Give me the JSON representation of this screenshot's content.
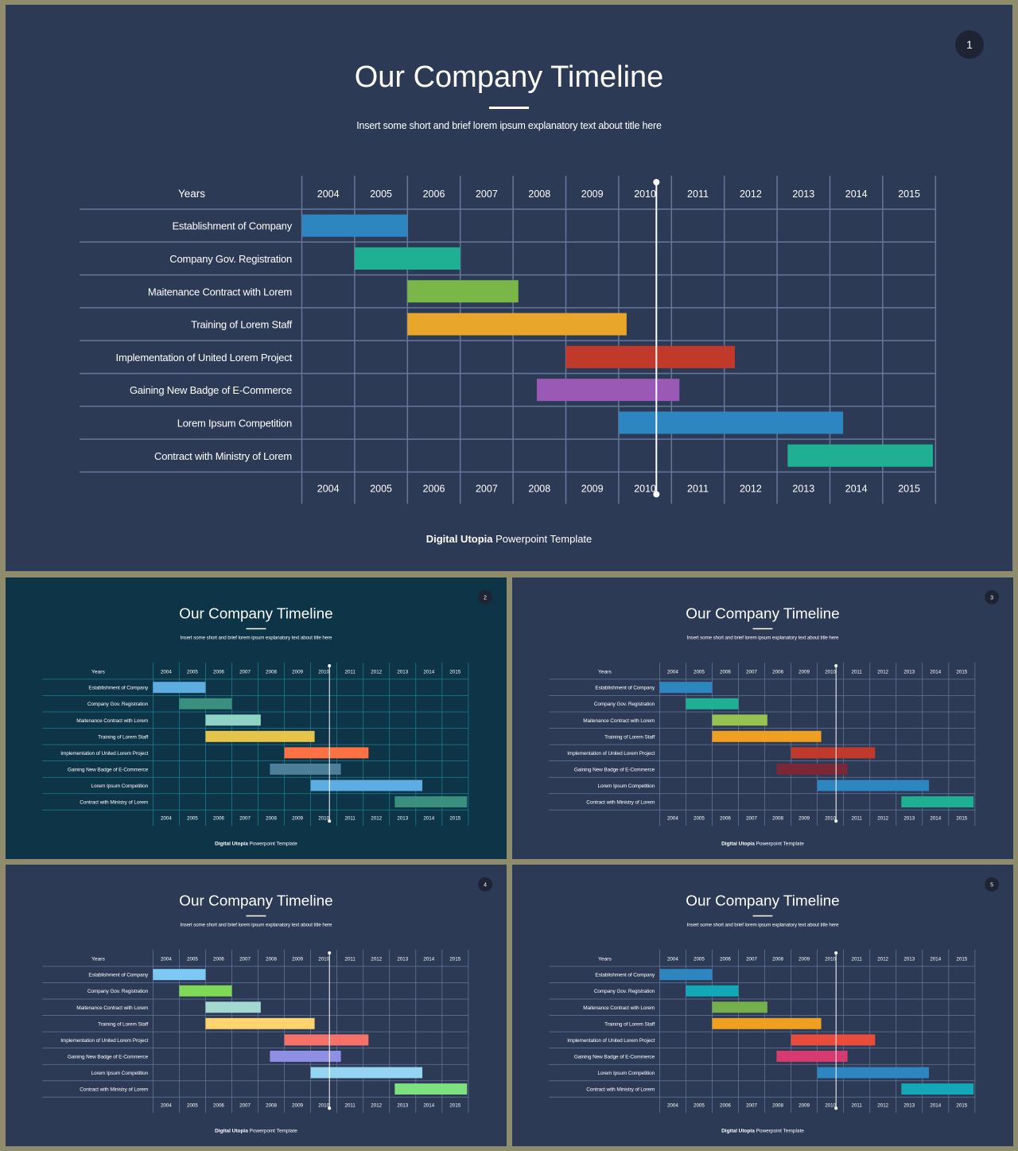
{
  "deck": {
    "title": "Our Company Timeline",
    "subtitle": "Insert some short and brief lorem ipsum explanatory text about title here",
    "footer_bold": "Digital Utopia",
    "footer_rest": " Powerpoint Template"
  },
  "chart_data": {
    "type": "gantt",
    "row_header": "Years",
    "years": [
      "2004",
      "2005",
      "2006",
      "2007",
      "2008",
      "2009",
      "2010",
      "2011",
      "2012",
      "2013",
      "2014",
      "2015"
    ],
    "marker": 2011,
    "tasks": [
      {
        "label": "Establishment of Company",
        "start": 2004,
        "end": 2006
      },
      {
        "label": "Company Gov. Registration",
        "start": 2005,
        "end": 2007
      },
      {
        "label": "Maitenance Contract with Lorem",
        "start": 2006,
        "end": 2008.1
      },
      {
        "label": "Training of Lorem Staff",
        "start": 2006,
        "end": 2010.15
      },
      {
        "label": "Implementation of United Lorem Project",
        "start": 2009,
        "end": 2012.2
      },
      {
        "label": "Gaining New Badge of E-Commerce",
        "start": 2008.45,
        "end": 2011.15
      },
      {
        "label": "Lorem Ipsum Competition",
        "start": 2010,
        "end": 2014.25
      },
      {
        "label": "Contract with Ministry of Lorem",
        "start": 2013.2,
        "end": 2015.95
      }
    ]
  },
  "slides": [
    {
      "number": "1",
      "background": "#2d3a56",
      "grid": "#66779b",
      "colors": [
        "#2e86c1",
        "#1fb093",
        "#7ab648",
        "#e8a72a",
        "#c0392b",
        "#9b59b6",
        "#2e86c1",
        "#1fb093"
      ]
    },
    {
      "number": "2",
      "background": "#0d3447",
      "grid": "#1e7f92",
      "colors": [
        "#5dade2",
        "#3a8f7e",
        "#8fd3c4",
        "#e6c44a",
        "#ff7043",
        "#4d7f99",
        "#5dade2",
        "#3a8f7e"
      ]
    },
    {
      "number": "3",
      "background": "#2d3a56",
      "grid": "#66779b",
      "colors": [
        "#2e86c1",
        "#1fb093",
        "#96c252",
        "#f0a020",
        "#c0392b",
        "#7a2838",
        "#2e86c1",
        "#1fb093"
      ]
    },
    {
      "number": "4",
      "background": "#2d3a56",
      "grid": "#66779b",
      "colors": [
        "#7ec8f5",
        "#7ed957",
        "#a3d9d0",
        "#ffd36e",
        "#f4726a",
        "#8f8fe6",
        "#96d5f2",
        "#7ee07e"
      ]
    },
    {
      "number": "5",
      "background": "#2d3a56",
      "grid": "#66779b",
      "colors": [
        "#2e86c1",
        "#12a8b8",
        "#76b04a",
        "#f0a020",
        "#e74c3c",
        "#d63a6e",
        "#2e86c1",
        "#12a8b8"
      ]
    }
  ]
}
